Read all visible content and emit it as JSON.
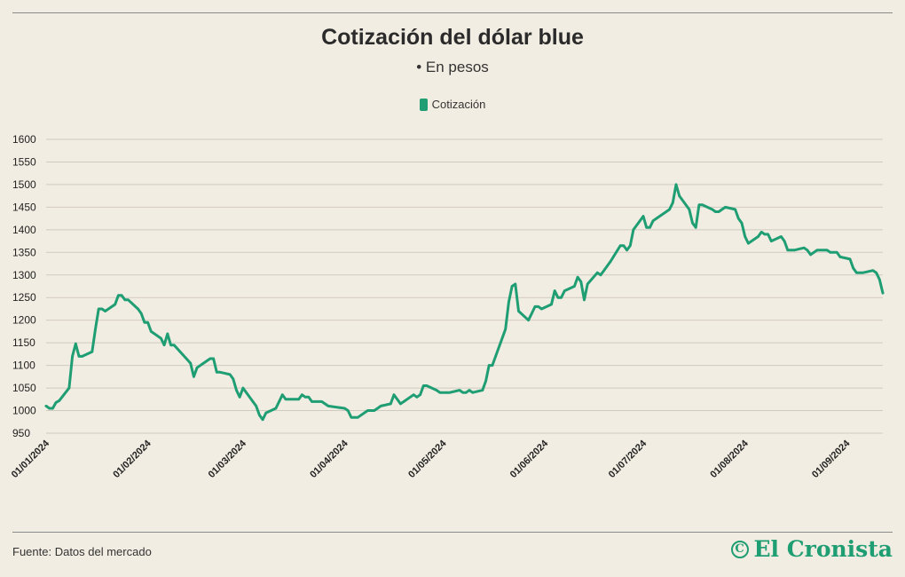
{
  "header": {
    "title": "Cotización del dólar blue",
    "subtitle": "• En pesos"
  },
  "legend": {
    "label": "Cotización"
  },
  "footer": {
    "source": "Fuente: Datos del mercado",
    "brand": "El Cronista",
    "brand_icon": "cronista-logo-icon"
  },
  "colors": {
    "line": "#1f9e74",
    "grid": "#cfcac0",
    "background": "#f2ede2",
    "brand": "#1f9e74"
  },
  "chart_data": {
    "type": "line",
    "title": "Cotización del dólar blue",
    "subtitle": "• En pesos",
    "ylim": [
      950,
      1600
    ],
    "yticks": [
      950,
      1000,
      1050,
      1100,
      1150,
      1200,
      1250,
      1300,
      1350,
      1400,
      1450,
      1500,
      1550,
      1600
    ],
    "xlim": [
      "2024-01-01",
      "2024-09-12"
    ],
    "xticks": [
      "2024-01-01",
      "2024-02-01",
      "2024-03-01",
      "2024-04-01",
      "2024-05-01",
      "2024-06-01",
      "2024-07-01",
      "2024-08-01",
      "2024-09-01"
    ],
    "xtick_labels": [
      "01/01/2024",
      "01/02/2024",
      "01/03/2024",
      "01/04/2024",
      "01/05/2024",
      "01/06/2024",
      "01/07/2024",
      "01/08/2024",
      "01/09/2024"
    ],
    "grid": true,
    "legend_position": "top-center",
    "series": [
      {
        "name": "Cotización",
        "x": [
          "2024-01-01",
          "2024-01-02",
          "2024-01-03",
          "2024-01-04",
          "2024-01-05",
          "2024-01-08",
          "2024-01-09",
          "2024-01-10",
          "2024-01-11",
          "2024-01-12",
          "2024-01-15",
          "2024-01-16",
          "2024-01-17",
          "2024-01-18",
          "2024-01-19",
          "2024-01-22",
          "2024-01-23",
          "2024-01-24",
          "2024-01-25",
          "2024-01-26",
          "2024-01-29",
          "2024-01-30",
          "2024-01-31",
          "2024-02-01",
          "2024-02-02",
          "2024-02-05",
          "2024-02-06",
          "2024-02-07",
          "2024-02-08",
          "2024-02-09",
          "2024-02-14",
          "2024-02-15",
          "2024-02-16",
          "2024-02-19",
          "2024-02-20",
          "2024-02-21",
          "2024-02-22",
          "2024-02-23",
          "2024-02-26",
          "2024-02-27",
          "2024-02-28",
          "2024-02-29",
          "2024-03-01",
          "2024-03-04",
          "2024-03-05",
          "2024-03-06",
          "2024-03-07",
          "2024-03-08",
          "2024-03-11",
          "2024-03-12",
          "2024-03-13",
          "2024-03-14",
          "2024-03-15",
          "2024-03-18",
          "2024-03-19",
          "2024-03-20",
          "2024-03-21",
          "2024-03-22",
          "2024-03-25",
          "2024-03-26",
          "2024-03-27",
          "2024-04-01",
          "2024-04-02",
          "2024-04-03",
          "2024-04-04",
          "2024-04-05",
          "2024-04-08",
          "2024-04-09",
          "2024-04-10",
          "2024-04-11",
          "2024-04-12",
          "2024-04-15",
          "2024-04-16",
          "2024-04-17",
          "2024-04-18",
          "2024-04-19",
          "2024-04-22",
          "2024-04-23",
          "2024-04-24",
          "2024-04-25",
          "2024-04-26",
          "2024-04-29",
          "2024-04-30",
          "2024-05-02",
          "2024-05-03",
          "2024-05-06",
          "2024-05-07",
          "2024-05-08",
          "2024-05-09",
          "2024-05-10",
          "2024-05-13",
          "2024-05-14",
          "2024-05-15",
          "2024-05-16",
          "2024-05-17",
          "2024-05-20",
          "2024-05-21",
          "2024-05-22",
          "2024-05-23",
          "2024-05-24",
          "2024-05-27",
          "2024-05-28",
          "2024-05-29",
          "2024-05-30",
          "2024-05-31",
          "2024-06-03",
          "2024-06-04",
          "2024-06-05",
          "2024-06-06",
          "2024-06-07",
          "2024-06-10",
          "2024-06-11",
          "2024-06-12",
          "2024-06-13",
          "2024-06-14",
          "2024-06-17",
          "2024-06-18",
          "2024-06-19",
          "2024-06-20",
          "2024-06-21",
          "2024-06-24",
          "2024-06-25",
          "2024-06-26",
          "2024-06-27",
          "2024-06-28",
          "2024-07-01",
          "2024-07-02",
          "2024-07-03",
          "2024-07-04",
          "2024-07-05",
          "2024-07-08",
          "2024-07-09",
          "2024-07-10",
          "2024-07-11",
          "2024-07-12",
          "2024-07-15",
          "2024-07-16",
          "2024-07-17",
          "2024-07-18",
          "2024-07-19",
          "2024-07-22",
          "2024-07-23",
          "2024-07-24",
          "2024-07-25",
          "2024-07-26",
          "2024-07-29",
          "2024-07-30",
          "2024-07-31",
          "2024-08-01",
          "2024-08-02",
          "2024-08-05",
          "2024-08-06",
          "2024-08-07",
          "2024-08-08",
          "2024-08-09",
          "2024-08-12",
          "2024-08-13",
          "2024-08-14",
          "2024-08-15",
          "2024-08-16",
          "2024-08-19",
          "2024-08-20",
          "2024-08-21",
          "2024-08-22",
          "2024-08-23",
          "2024-08-26",
          "2024-08-27",
          "2024-08-28",
          "2024-08-29",
          "2024-08-30",
          "2024-09-02",
          "2024-09-03",
          "2024-09-04",
          "2024-09-05",
          "2024-09-06",
          "2024-09-09",
          "2024-09-10",
          "2024-09-11",
          "2024-09-12"
        ],
        "y": [
          1010,
          1005,
          1005,
          1018,
          1022,
          1050,
          1120,
          1148,
          1120,
          1120,
          1130,
          1180,
          1225,
          1225,
          1220,
          1235,
          1255,
          1255,
          1245,
          1245,
          1225,
          1215,
          1195,
          1195,
          1175,
          1160,
          1145,
          1170,
          1145,
          1145,
          1105,
          1075,
          1095,
          1110,
          1115,
          1115,
          1085,
          1085,
          1080,
          1070,
          1045,
          1030,
          1050,
          1020,
          1010,
          990,
          980,
          995,
          1005,
          1020,
          1035,
          1025,
          1025,
          1025,
          1035,
          1030,
          1030,
          1020,
          1020,
          1015,
          1010,
          1005,
          1000,
          985,
          985,
          985,
          1000,
          1000,
          1000,
          1005,
          1010,
          1015,
          1035,
          1025,
          1015,
          1020,
          1035,
          1030,
          1035,
          1055,
          1055,
          1045,
          1040,
          1040,
          1040,
          1045,
          1040,
          1040,
          1045,
          1040,
          1045,
          1065,
          1100,
          1100,
          1120,
          1180,
          1240,
          1275,
          1280,
          1220,
          1200,
          1215,
          1230,
          1230,
          1225,
          1235,
          1265,
          1250,
          1250,
          1265,
          1275,
          1295,
          1285,
          1245,
          1280,
          1305,
          1300,
          1310,
          1320,
          1330,
          1365,
          1365,
          1355,
          1365,
          1400,
          1430,
          1405,
          1405,
          1420,
          1425,
          1440,
          1445,
          1460,
          1500,
          1475,
          1445,
          1415,
          1405,
          1455,
          1455,
          1445,
          1440,
          1440,
          1445,
          1450,
          1445,
          1425,
          1415,
          1385,
          1370,
          1385,
          1395,
          1390,
          1390,
          1375,
          1385,
          1375,
          1355,
          1355,
          1355,
          1360,
          1355,
          1345,
          1350,
          1355,
          1355,
          1350,
          1350,
          1350,
          1340,
          1335,
          1315,
          1305,
          1305,
          1305,
          1310,
          1305,
          1290,
          1260
        ]
      }
    ]
  }
}
